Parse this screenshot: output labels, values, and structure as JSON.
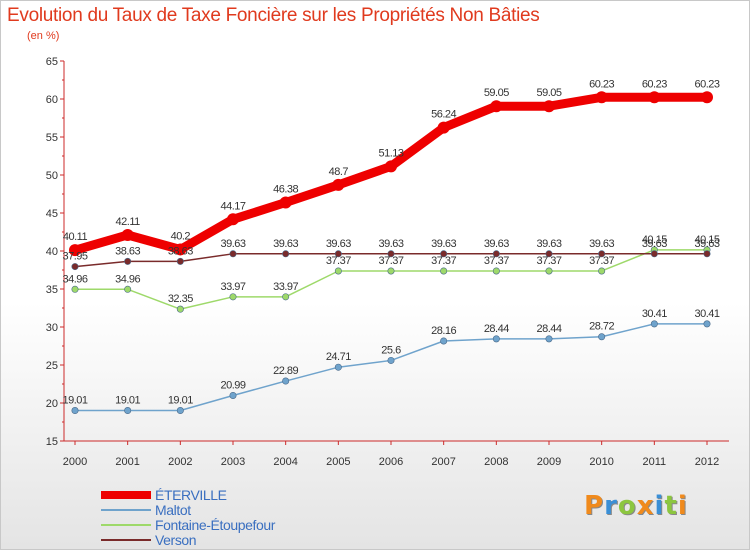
{
  "title": "Evolution du Taux de Taxe Foncière sur les Propriétés Non Bâties",
  "subtitle": "(en %)",
  "logo": {
    "text": "Prox iti",
    "letters": [
      {
        "ch": "P",
        "color": "#f08a1c"
      },
      {
        "ch": "r",
        "color": "#3a8fd6"
      },
      {
        "ch": "o",
        "color": "#8cc63f"
      },
      {
        "ch": "x",
        "color": "#f08a1c"
      },
      {
        "ch": "i",
        "color": "#3a8fd6"
      },
      {
        "ch": "t",
        "color": "#8cc63f"
      },
      {
        "ch": "i",
        "color": "#f08a1c"
      }
    ]
  },
  "chart_data": {
    "type": "line",
    "categories": [
      "2000",
      "2001",
      "2002",
      "2003",
      "2004",
      "2005",
      "2006",
      "2007",
      "2008",
      "2009",
      "2010",
      "2011",
      "2012"
    ],
    "ylim": [
      15,
      65
    ],
    "yticks": [
      15,
      20,
      25,
      30,
      35,
      40,
      45,
      50,
      55,
      60,
      65
    ],
    "grid": false,
    "legend_position": "bottom-left",
    "series": [
      {
        "name": "ÉTERVILLE",
        "color": "#ee0000",
        "values": [
          40.11,
          42.11,
          40.2,
          44.17,
          46.38,
          48.7,
          51.13,
          56.24,
          59.05,
          59.05,
          60.23,
          60.23,
          60.23
        ],
        "labels": [
          "40.11",
          "42.11",
          "40.2",
          "44.17",
          "46.38",
          "48.7",
          "51.13",
          "56.24",
          "59.05",
          "59.05",
          "60.23",
          "60.23",
          "60.23"
        ]
      },
      {
        "name": "Maltot",
        "color": "#6fa3cc",
        "values": [
          19.01,
          19.01,
          19.01,
          20.99,
          22.89,
          24.71,
          25.6,
          28.16,
          28.44,
          28.44,
          28.72,
          30.41,
          30.41
        ],
        "labels": [
          "19.01",
          "19.01",
          "19.01",
          "20.99",
          "22.89",
          "24.71",
          "25.6",
          "28.16",
          "28.44",
          "28.44",
          "28.72",
          "30.41",
          "30.41"
        ]
      },
      {
        "name": "Fontaine-Étoupefour",
        "color": "#9ed96a",
        "values": [
          34.96,
          34.96,
          32.35,
          33.97,
          33.97,
          37.37,
          37.37,
          37.37,
          37.37,
          37.37,
          37.37,
          40.15,
          40.15
        ],
        "labels": [
          "34.96",
          "34.96",
          "32.35",
          "33.97",
          "33.97",
          "37.37",
          "37.37",
          "37.37",
          "37.37",
          "37.37",
          "37.37",
          "40.15",
          "40.15"
        ]
      },
      {
        "name": "Verson",
        "color": "#7a2b2b",
        "values": [
          37.95,
          38.63,
          38.63,
          39.63,
          39.63,
          39.63,
          39.63,
          39.63,
          39.63,
          39.63,
          39.63,
          39.63,
          39.63
        ],
        "labels": [
          "37.95",
          "38.63",
          "38.63",
          "39.63",
          "39.63",
          "39.63",
          "39.63",
          "39.63",
          "39.63",
          "39.63",
          "39.63",
          "39.63",
          "39.63"
        ]
      }
    ]
  }
}
